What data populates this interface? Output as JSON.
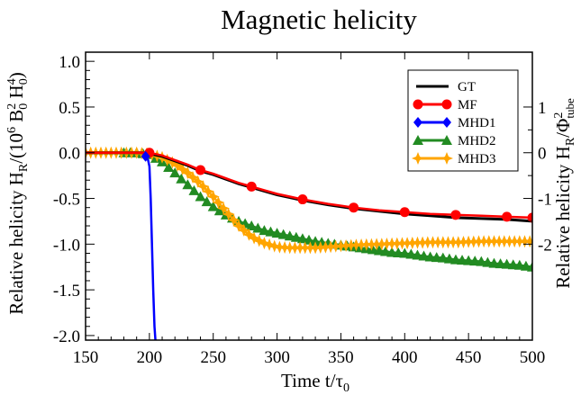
{
  "chart_data": {
    "type": "line",
    "title": "Magnetic helicity",
    "xlabel": "Time t/τ",
    "xlabel_sub": "0",
    "ylabel_left": {
      "main": "Relative helicity H",
      "sub": "R",
      "paren_open": "/(10",
      "sup6": "6",
      "b": " B",
      "b_sub": "0",
      "b_sup": "2",
      "h": " H",
      "h_sub": "0",
      "h_sup": "4",
      "paren_close": ")"
    },
    "ylabel_right": {
      "main": "Relative helicity H",
      "sub": "R",
      "slash": "/Φ",
      "phi_sup": "2",
      "phi_sub": "tube"
    },
    "xlim": [
      150,
      500
    ],
    "ylim": [
      -2.05,
      1.1
    ],
    "y2_scale": 0.5,
    "x_ticks": [
      "150",
      "200",
      "250",
      "300",
      "350",
      "400",
      "450",
      "500"
    ],
    "y_ticks": [
      "1.0",
      "0.5",
      "0.0",
      "-0.5",
      "-1.0",
      "-1.5",
      "-2.0"
    ],
    "y2_ticks": [
      "1",
      "0",
      "-1",
      "-2"
    ],
    "legend_position": "top-right",
    "colors": {
      "GT": "#000000",
      "MF": "#ff0000",
      "MHD1": "#0000ff",
      "MHD2": "#228b22",
      "MHD3": "#ffa500"
    },
    "series": [
      {
        "name": "GT",
        "marker": "none",
        "x": [
          150,
          195,
          200,
          210,
          220,
          230,
          240,
          250,
          260,
          270,
          280,
          290,
          300,
          310,
          320,
          340,
          360,
          380,
          400,
          420,
          440,
          460,
          480,
          500
        ],
        "y": [
          0.0,
          0.0,
          -0.01,
          -0.04,
          -0.09,
          -0.14,
          -0.2,
          -0.24,
          -0.29,
          -0.34,
          -0.38,
          -0.42,
          -0.46,
          -0.49,
          -0.52,
          -0.57,
          -0.61,
          -0.64,
          -0.67,
          -0.69,
          -0.71,
          -0.72,
          -0.73,
          -0.75
        ]
      },
      {
        "name": "MF",
        "marker": "circle",
        "x": [
          150,
          200,
          210,
          220,
          230,
          240,
          250,
          260,
          270,
          280,
          290,
          300,
          310,
          320,
          340,
          360,
          380,
          400,
          420,
          440,
          460,
          480,
          500
        ],
        "y": [
          0.0,
          0.0,
          -0.03,
          -0.08,
          -0.13,
          -0.19,
          -0.23,
          -0.28,
          -0.33,
          -0.37,
          -0.41,
          -0.45,
          -0.48,
          -0.51,
          -0.56,
          -0.6,
          -0.63,
          -0.65,
          -0.67,
          -0.68,
          -0.69,
          -0.7,
          -0.71
        ],
        "marker_x": [
          200,
          240,
          280,
          320,
          360,
          400,
          440,
          480,
          500
        ]
      },
      {
        "name": "MHD1",
        "marker": "diamond",
        "x": [
          195,
          197,
          199,
          200,
          201,
          202,
          203,
          204,
          205
        ],
        "y": [
          -0.02,
          -0.04,
          -0.08,
          -0.15,
          -0.5,
          -1.0,
          -1.5,
          -1.9,
          -2.1
        ],
        "marker_x": [
          197
        ]
      },
      {
        "name": "MHD2",
        "marker": "triangle",
        "x": [
          180,
          190,
          200,
          210,
          220,
          230,
          240,
          250,
          260,
          270,
          280,
          290,
          300,
          310,
          320,
          330,
          340,
          350,
          360,
          370,
          380,
          390,
          400,
          410,
          420,
          430,
          440,
          450,
          460,
          470,
          480,
          490,
          500
        ],
        "y": [
          0.0,
          0.0,
          -0.02,
          -0.1,
          -0.22,
          -0.35,
          -0.48,
          -0.59,
          -0.68,
          -0.75,
          -0.8,
          -0.85,
          -0.88,
          -0.91,
          -0.94,
          -0.97,
          -0.99,
          -1.01,
          -1.03,
          -1.05,
          -1.07,
          -1.09,
          -1.1,
          -1.12,
          -1.14,
          -1.15,
          -1.17,
          -1.18,
          -1.19,
          -1.21,
          -1.22,
          -1.23,
          -1.25
        ],
        "marker_step": 5
      },
      {
        "name": "MHD3",
        "marker": "star",
        "x": [
          150,
          190,
          200,
          210,
          220,
          230,
          240,
          250,
          260,
          270,
          280,
          290,
          300,
          310,
          320,
          330,
          340,
          350,
          360,
          380,
          400,
          420,
          440,
          460,
          480,
          500
        ],
        "y": [
          0.0,
          0.0,
          -0.01,
          -0.05,
          -0.12,
          -0.22,
          -0.34,
          -0.48,
          -0.64,
          -0.8,
          -0.92,
          -0.99,
          -1.03,
          -1.04,
          -1.04,
          -1.04,
          -1.03,
          -1.02,
          -1.01,
          -1.0,
          -0.99,
          -0.98,
          -0.98,
          -0.97,
          -0.97,
          -0.97
        ],
        "marker_step": 4
      }
    ]
  }
}
